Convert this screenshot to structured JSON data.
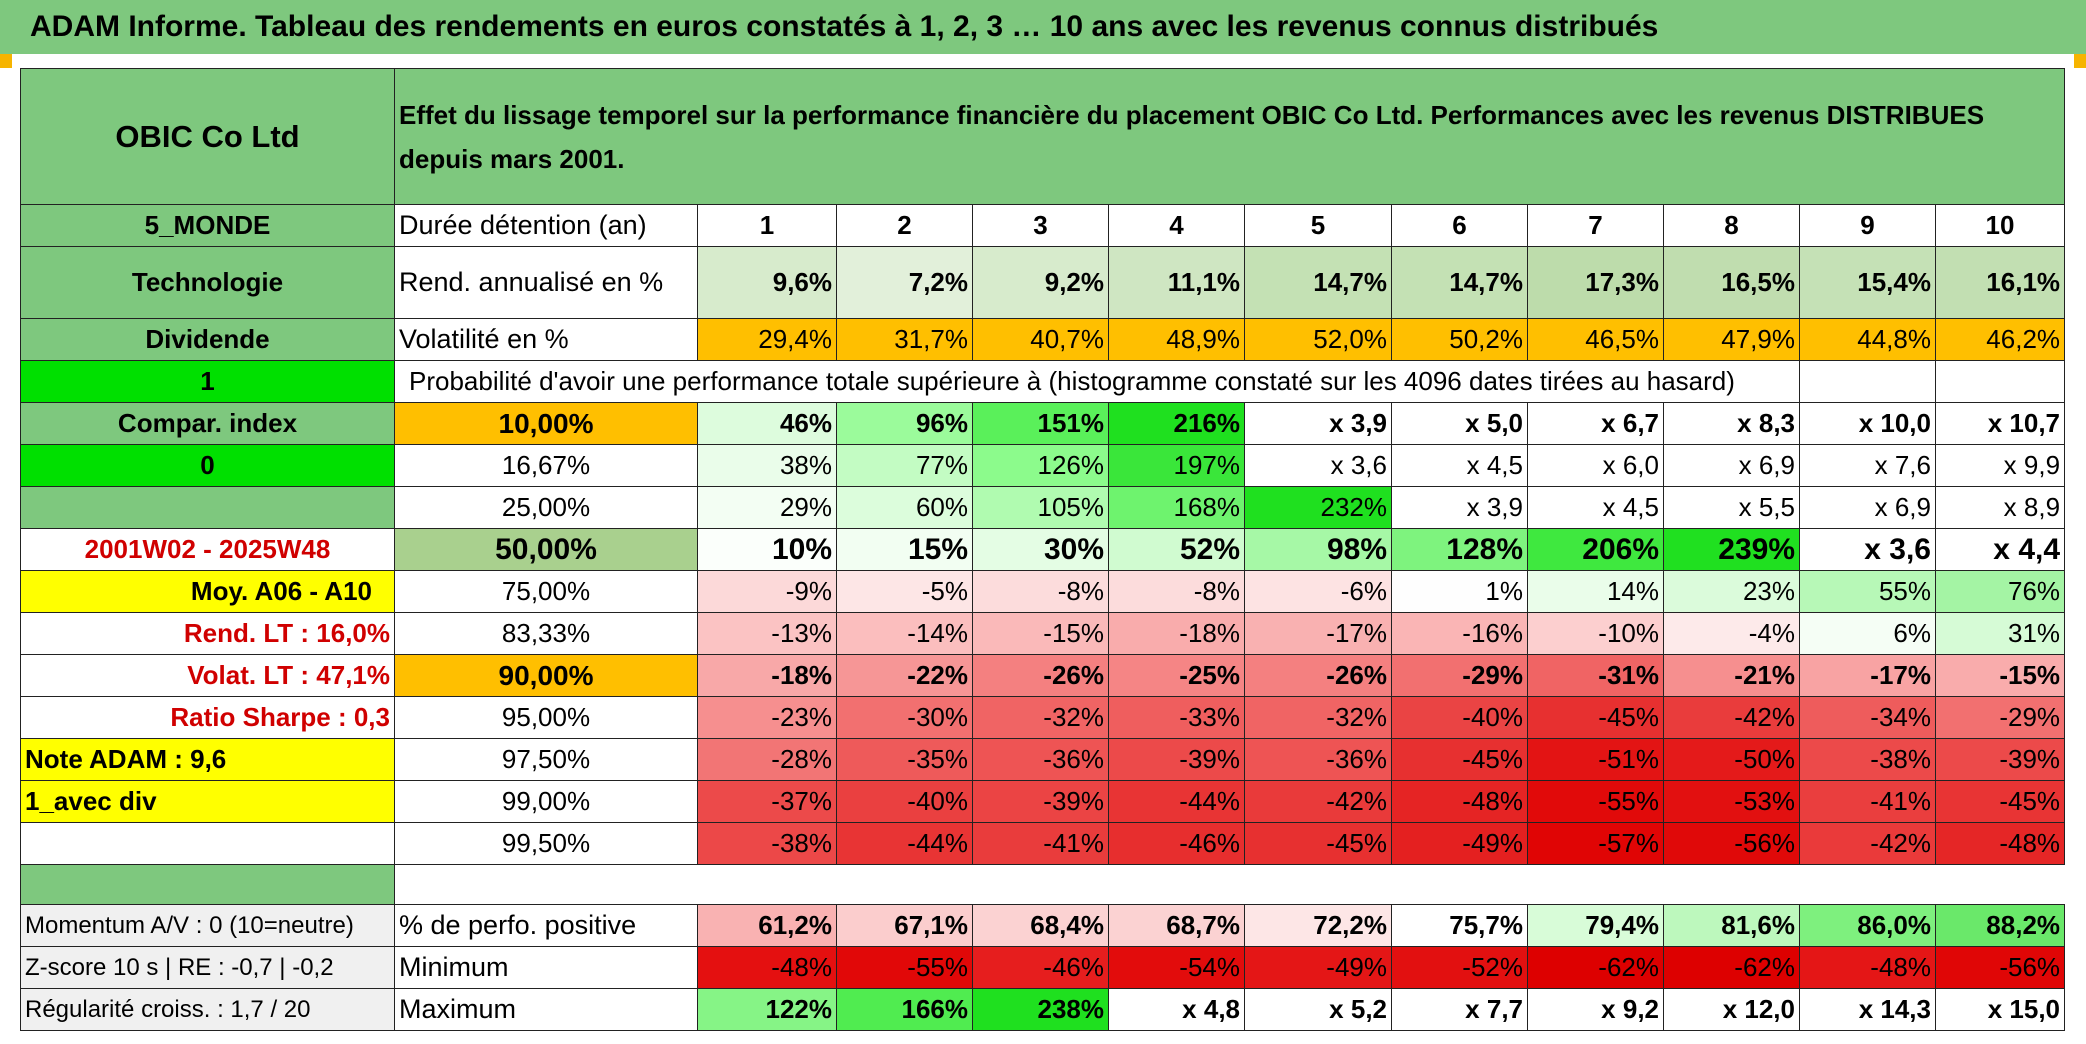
{
  "title": "ADAM Informe. Tableau des rendements en euros constatés à 1, 2, 3 … 10 ans avec les revenus connus distribués",
  "colors": {
    "green_header": "#7ec87e",
    "bright_green": "#00e000",
    "orange": "#ffbf00",
    "yellow": "#ffff00",
    "light_green_band": "#c6e0b4",
    "red_text": "#d00000"
  },
  "header": {
    "company": "OBIC Co Ltd",
    "description": "Effet du lissage temporel sur la performance financière du placement OBIC Co Ltd. Performances avec les revenus DISTRIBUES depuis mars 2001."
  },
  "left": {
    "zone": "5_MONDE",
    "sector": "Technologie",
    "dividend_label": "Dividende",
    "val_1": "1",
    "compar_index": "Compar. index",
    "val_0": "0",
    "period": "2001W02 - 2025W48",
    "moy": "Moy. A06 - A10",
    "rend_lt": "Rend. LT :   16,0%",
    "volat_lt": "Volat. LT :   47,1%",
    "sharpe": "Ratio Sharpe :    0,3",
    "note": "Note ADAM : 9,6",
    "avec_div": "1_avec div",
    "momentum": "Momentum A/V : 0 (10=neutre)",
    "zscore": "Z-score 10 s | RE : -0,7 | -0,2",
    "regularite": "Régularité croiss. : 1,7 / 20"
  },
  "rows": {
    "duree_label": "Durée détention (an)",
    "years": [
      "1",
      "2",
      "3",
      "4",
      "5",
      "6",
      "7",
      "8",
      "9",
      "10"
    ],
    "rend_label": "Rend. annualisé en %",
    "rend": [
      "9,6%",
      "7,2%",
      "9,2%",
      "11,1%",
      "14,7%",
      "14,7%",
      "17,3%",
      "16,5%",
      "15,4%",
      "16,1%"
    ],
    "vol_label": "Volatilité en %",
    "vol": [
      "29,4%",
      "31,7%",
      "40,7%",
      "48,9%",
      "52,0%",
      "50,2%",
      "46,5%",
      "47,9%",
      "44,8%",
      "46,2%"
    ],
    "prob_label": "Probabilité d'avoir une performance totale supérieure à (histogramme constaté sur les 4096 dates tirées au hasard)",
    "quantiles": [
      {
        "q": "10,00%",
        "v": [
          "46%",
          "96%",
          "151%",
          "216%",
          "x 3,9",
          "x 5,0",
          "x 6,7",
          "x 8,3",
          "x 10,0",
          "x 10,7"
        ]
      },
      {
        "q": "16,67%",
        "v": [
          "38%",
          "77%",
          "126%",
          "197%",
          "x 3,6",
          "x 4,5",
          "x 6,0",
          "x 6,9",
          "x 7,6",
          "x 9,9"
        ]
      },
      {
        "q": "25,00%",
        "v": [
          "29%",
          "60%",
          "105%",
          "168%",
          "232%",
          "x 3,9",
          "x 4,5",
          "x 5,5",
          "x 6,9",
          "x 8,9"
        ]
      },
      {
        "q": "50,00%",
        "v": [
          "10%",
          "15%",
          "30%",
          "52%",
          "98%",
          "128%",
          "206%",
          "239%",
          "x 3,6",
          "x 4,4"
        ]
      },
      {
        "q": "75,00%",
        "v": [
          "-9%",
          "-5%",
          "-8%",
          "-8%",
          "-6%",
          "1%",
          "14%",
          "23%",
          "55%",
          "76%"
        ]
      },
      {
        "q": "83,33%",
        "v": [
          "-13%",
          "-14%",
          "-15%",
          "-18%",
          "-17%",
          "-16%",
          "-10%",
          "-4%",
          "6%",
          "31%"
        ]
      },
      {
        "q": "90,00%",
        "v": [
          "-18%",
          "-22%",
          "-26%",
          "-25%",
          "-26%",
          "-29%",
          "-31%",
          "-21%",
          "-17%",
          "-15%"
        ]
      },
      {
        "q": "95,00%",
        "v": [
          "-23%",
          "-30%",
          "-32%",
          "-33%",
          "-32%",
          "-40%",
          "-45%",
          "-42%",
          "-34%",
          "-29%"
        ]
      },
      {
        "q": "97,50%",
        "v": [
          "-28%",
          "-35%",
          "-36%",
          "-39%",
          "-36%",
          "-45%",
          "-51%",
          "-50%",
          "-38%",
          "-39%"
        ]
      },
      {
        "q": "99,00%",
        "v": [
          "-37%",
          "-40%",
          "-39%",
          "-44%",
          "-42%",
          "-48%",
          "-55%",
          "-53%",
          "-41%",
          "-45%"
        ]
      },
      {
        "q": "99,50%",
        "v": [
          "-38%",
          "-44%",
          "-41%",
          "-46%",
          "-45%",
          "-49%",
          "-57%",
          "-56%",
          "-42%",
          "-48%"
        ]
      }
    ],
    "pos_label": "% de perfo. positive",
    "pos": [
      "61,2%",
      "67,1%",
      "68,4%",
      "68,7%",
      "72,2%",
      "75,7%",
      "79,4%",
      "81,6%",
      "86,0%",
      "88,2%"
    ],
    "min_label": "Minimum",
    "min": [
      "-48%",
      "-55%",
      "-46%",
      "-54%",
      "-49%",
      "-52%",
      "-62%",
      "-62%",
      "-48%",
      "-56%"
    ],
    "max_label": "Maximum",
    "max": [
      "122%",
      "166%",
      "238%",
      "x 4,8",
      "x 5,2",
      "x 7,7",
      "x 9,2",
      "x 12,0",
      "x 14,3",
      "x 15,0"
    ]
  }
}
